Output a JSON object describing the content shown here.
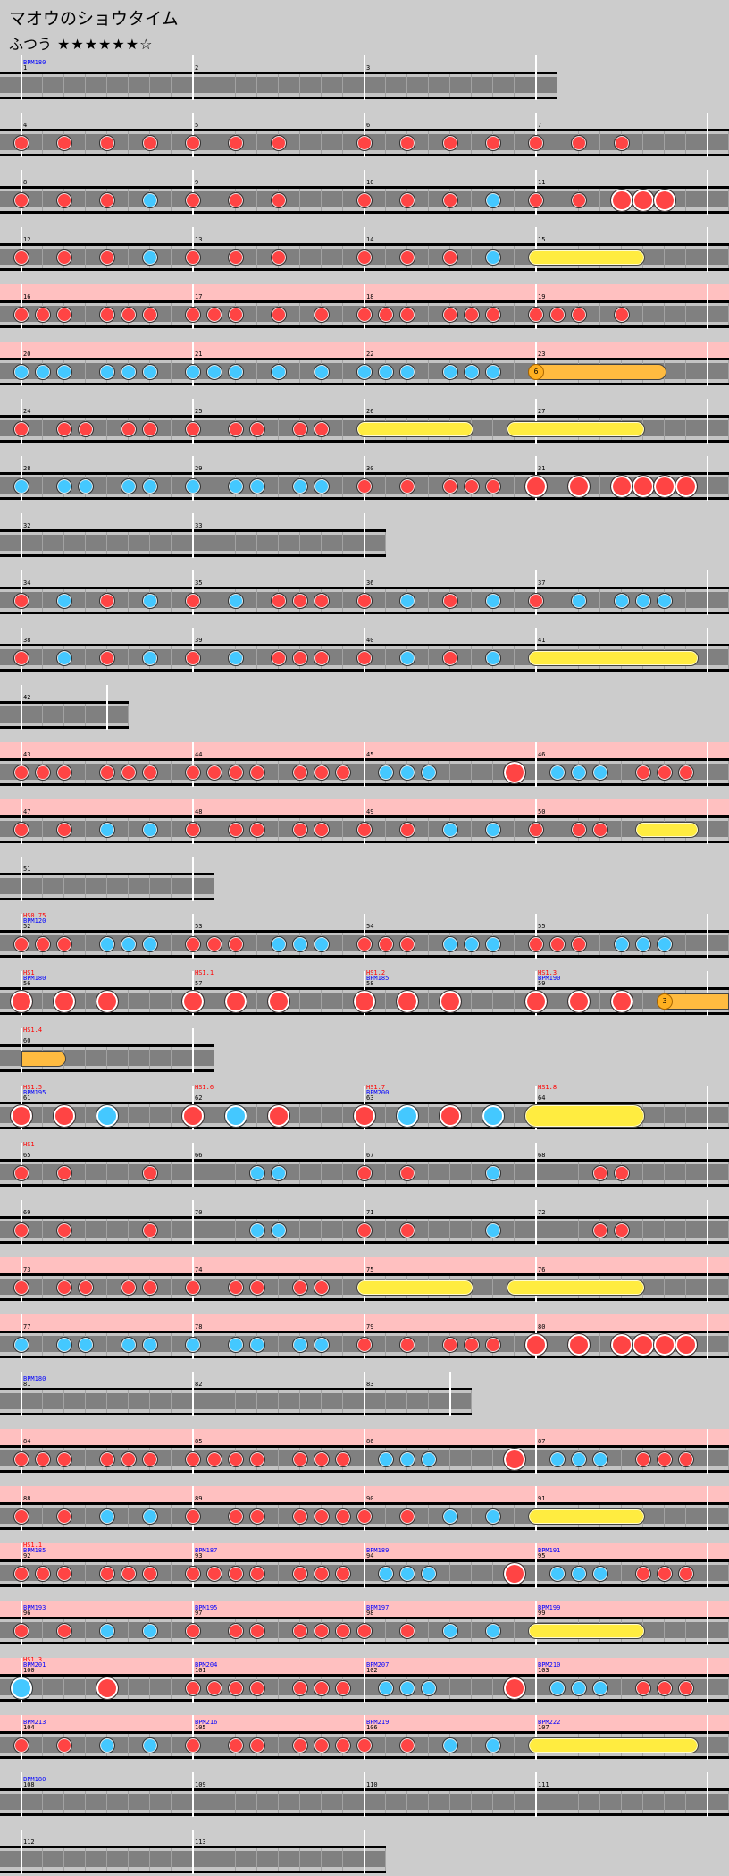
{
  "title": "マオウのショウタイム",
  "difficulty": "ふつう",
  "stars": "★★★★★★☆",
  "colors": {
    "don": "#ff4444",
    "ka": "#44c8ff",
    "drumroll": "#ffec40",
    "balloon": "#ffbb40",
    "gogo": "#ffc0c0",
    "bpm_label": "#0000ff",
    "hs_label": "#ff0000"
  },
  "note_legend": {
    "0": "empty",
    "1": "don",
    "2": "ka",
    "3": "big-don",
    "4": "big-ka",
    "5": "drumroll-start",
    "6": "big-drumroll-start",
    "7": "balloon-start",
    "8": "roll-end"
  },
  "rows": [
    {
      "gogo": false,
      "measures": [
        {
          "n": "1",
          "bpm": "BPM180",
          "notes": ""
        },
        {
          "n": "2",
          "notes": ""
        },
        {
          "n": "3",
          "notes": ""
        }
      ]
    },
    {
      "gogo": false,
      "measures": [
        {
          "n": "4",
          "notes": "10101010"
        },
        {
          "n": "5",
          "notes": "10101000"
        },
        {
          "n": "6",
          "notes": "10101010"
        },
        {
          "n": "7",
          "notes": "10101000"
        }
      ]
    },
    {
      "gogo": false,
      "measures": [
        {
          "n": "8",
          "notes": "10101020"
        },
        {
          "n": "9",
          "notes": "10101000"
        },
        {
          "n": "10",
          "notes": "10101020"
        },
        {
          "n": "11",
          "notes": "10103330"
        }
      ]
    },
    {
      "gogo": false,
      "measures": [
        {
          "n": "12",
          "notes": "10101020"
        },
        {
          "n": "13",
          "notes": "10101000"
        },
        {
          "n": "14",
          "notes": "10101020"
        },
        {
          "n": "15",
          "notes": "50000800"
        }
      ]
    },
    {
      "gogo": true,
      "measures": [
        {
          "n": "16",
          "notes": "11101110"
        },
        {
          "n": "17",
          "notes": "11101010"
        },
        {
          "n": "18",
          "notes": "11101110"
        },
        {
          "n": "19",
          "notes": "11101000"
        }
      ]
    },
    {
      "gogo": true,
      "measures": [
        {
          "n": "20",
          "notes": "22202220"
        },
        {
          "n": "21",
          "notes": "22202020"
        },
        {
          "n": "22",
          "notes": "22202220"
        },
        {
          "n": "23",
          "notes": "70000080",
          "balloon": "6"
        }
      ]
    },
    {
      "gogo": false,
      "measures": [
        {
          "n": "24",
          "notes": "10110110"
        },
        {
          "n": "25",
          "notes": "10110110"
        },
        {
          "n": "26",
          "notes": "50000805"
        },
        {
          "n": "27",
          "notes": "00000800"
        }
      ]
    },
    {
      "gogo": false,
      "measures": [
        {
          "n": "28",
          "notes": "20220220"
        },
        {
          "n": "29",
          "notes": "20220220"
        },
        {
          "n": "30",
          "notes": "10101110"
        },
        {
          "n": "31",
          "notes": "30303333"
        }
      ]
    },
    {
      "gogo": false,
      "measures": [
        {
          "n": "32",
          "notes": ""
        },
        {
          "n": "33",
          "notes": ""
        }
      ]
    },
    {
      "gogo": false,
      "measures": [
        {
          "n": "34",
          "notes": "10201020"
        },
        {
          "n": "35",
          "notes": "10201110"
        },
        {
          "n": "36",
          "notes": "10201020"
        },
        {
          "n": "37",
          "notes": "10202220"
        }
      ]
    },
    {
      "gogo": false,
      "measures": [
        {
          "n": "38",
          "notes": "10201020"
        },
        {
          "n": "39",
          "notes": "10201110"
        },
        {
          "n": "40",
          "notes": "10201020"
        },
        {
          "n": "41",
          "notes": "5000000000000008"
        }
      ]
    },
    {
      "gogo": false,
      "measures": [
        {
          "n": "42",
          "sig": "2/4",
          "notes": ""
        }
      ]
    },
    {
      "gogo": true,
      "measures": [
        {
          "n": "43",
          "notes": "11101110"
        },
        {
          "n": "44",
          "notes": "11110111"
        },
        {
          "n": "45",
          "notes": "02220003"
        },
        {
          "n": "46",
          "notes": "02220111"
        }
      ]
    },
    {
      "gogo": true,
      "measures": [
        {
          "n": "47",
          "notes": "10102020"
        },
        {
          "n": "48",
          "notes": "10110110"
        },
        {
          "n": "49",
          "notes": "10102020"
        },
        {
          "n": "50",
          "notes": "1000101000500008"
        }
      ]
    },
    {
      "gogo": false,
      "measures": [
        {
          "n": "51",
          "notes": ""
        }
      ]
    },
    {
      "gogo": false,
      "measures": [
        {
          "n": "52",
          "hs": "HS0.75",
          "bpm": "BPM120",
          "notes": "11102220"
        },
        {
          "n": "53",
          "notes": "11102220"
        },
        {
          "n": "54",
          "notes": "11102220"
        },
        {
          "n": "55",
          "notes": "11102220"
        }
      ]
    },
    {
      "gogo": false,
      "measures": [
        {
          "n": "56",
          "hs": "HS1",
          "bpm": "BPM180",
          "notes": "30303000"
        },
        {
          "n": "57",
          "hs": "HS1.1",
          "notes": "30303000"
        },
        {
          "n": "58",
          "hs": "HS1.2",
          "bpm": "BPM185",
          "notes": "30303000"
        },
        {
          "n": "59",
          "hs": "HS1.3",
          "bpm": "BPM190",
          "notes": "30303070",
          "balloon": "3"
        }
      ]
    },
    {
      "gogo": false,
      "measures": [
        {
          "n": "60",
          "hs": "HS1.4",
          "notes": "00800000"
        }
      ]
    },
    {
      "gogo": false,
      "measures": [
        {
          "n": "61",
          "hs": "HS1.5",
          "bpm": "BPM195",
          "notes": "30304000"
        },
        {
          "n": "62",
          "hs": "HS1.6",
          "notes": "30403000"
        },
        {
          "n": "63",
          "hs": "HS1.7",
          "bpm": "BPM200",
          "notes": "30403040"
        },
        {
          "n": "64",
          "hs": "HS1.8",
          "notes": "60000800"
        }
      ]
    },
    {
      "gogo": false,
      "measures": [
        {
          "n": "65",
          "hs": "HS1",
          "notes": "10100010"
        },
        {
          "n": "66",
          "notes": "00022000"
        },
        {
          "n": "67",
          "notes": "10100020"
        },
        {
          "n": "68",
          "notes": "00011000"
        }
      ]
    },
    {
      "gogo": false,
      "measures": [
        {
          "n": "69",
          "notes": "10100010"
        },
        {
          "n": "70",
          "notes": "00022000"
        },
        {
          "n": "71",
          "notes": "10100020"
        },
        {
          "n": "72",
          "notes": "00011000"
        }
      ]
    },
    {
      "gogo": true,
      "measures": [
        {
          "n": "73",
          "notes": "10110110"
        },
        {
          "n": "74",
          "notes": "10110110"
        },
        {
          "n": "75",
          "notes": "50000805"
        },
        {
          "n": "76",
          "notes": "00000800"
        }
      ]
    },
    {
      "gogo": true,
      "measures": [
        {
          "n": "77",
          "notes": "20220220"
        },
        {
          "n": "78",
          "notes": "20220220"
        },
        {
          "n": "79",
          "notes": "10101110"
        },
        {
          "n": "80",
          "notes": "30303333"
        }
      ]
    },
    {
      "gogo": false,
      "measures": [
        {
          "n": "81",
          "bpm": "BPM180",
          "notes": ""
        },
        {
          "n": "82",
          "notes": ""
        },
        {
          "n": "83",
          "sig": "2/4",
          "notes": ""
        }
      ]
    },
    {
      "gogo": true,
      "measures": [
        {
          "n": "84",
          "notes": "11101110"
        },
        {
          "n": "85",
          "notes": "11110111"
        },
        {
          "n": "86",
          "notes": "02220003"
        },
        {
          "n": "87",
          "notes": "02220111"
        }
      ]
    },
    {
      "gogo": true,
      "measures": [
        {
          "n": "88",
          "notes": "10102020"
        },
        {
          "n": "89",
          "notes": "10110111"
        },
        {
          "n": "90",
          "notes": "10102020"
        },
        {
          "n": "91",
          "notes": "50000800"
        }
      ]
    },
    {
      "gogo": true,
      "measures": [
        {
          "n": "92",
          "hs": "HS1.1",
          "bpm": "BPM185",
          "notes": "11101110"
        },
        {
          "n": "93",
          "bpm": "BPM187",
          "notes": "11110111"
        },
        {
          "n": "94",
          "bpm": "BPM189",
          "notes": "02220003"
        },
        {
          "n": "95",
          "bpm": "BPM191",
          "notes": "02220111"
        }
      ]
    },
    {
      "gogo": true,
      "measures": [
        {
          "n": "96",
          "bpm": "BPM193",
          "notes": "10102020"
        },
        {
          "n": "97",
          "bpm": "BPM195",
          "notes": "10110111"
        },
        {
          "n": "98",
          "bpm": "BPM197",
          "notes": "10102020"
        },
        {
          "n": "99",
          "bpm": "BPM199",
          "notes": "50000800"
        }
      ]
    },
    {
      "gogo": true,
      "measures": [
        {
          "n": "100",
          "hs": "HS1.3",
          "bpm": "BPM201",
          "notes": "40003000"
        },
        {
          "n": "101",
          "bpm": "BPM204",
          "notes": "11110111"
        },
        {
          "n": "102",
          "bpm": "BPM207",
          "notes": "02220003"
        },
        {
          "n": "103",
          "bpm": "BPM210",
          "notes": "02220111"
        }
      ]
    },
    {
      "gogo": true,
      "measures": [
        {
          "n": "104",
          "bpm": "BPM213",
          "notes": "10102020"
        },
        {
          "n": "105",
          "bpm": "BPM216",
          "notes": "10110111"
        },
        {
          "n": "106",
          "bpm": "BPM219",
          "notes": "10102020"
        },
        {
          "n": "107",
          "bpm": "BPM222",
          "notes": "5000000000000008"
        }
      ]
    },
    {
      "gogo": false,
      "measures": [
        {
          "n": "108",
          "bpm": "BPM180",
          "notes": ""
        },
        {
          "n": "109",
          "notes": ""
        },
        {
          "n": "110",
          "notes": ""
        },
        {
          "n": "111",
          "notes": ""
        }
      ]
    },
    {
      "gogo": false,
      "measures": [
        {
          "n": "112",
          "notes": ""
        },
        {
          "n": "113",
          "notes": ""
        }
      ]
    }
  ]
}
